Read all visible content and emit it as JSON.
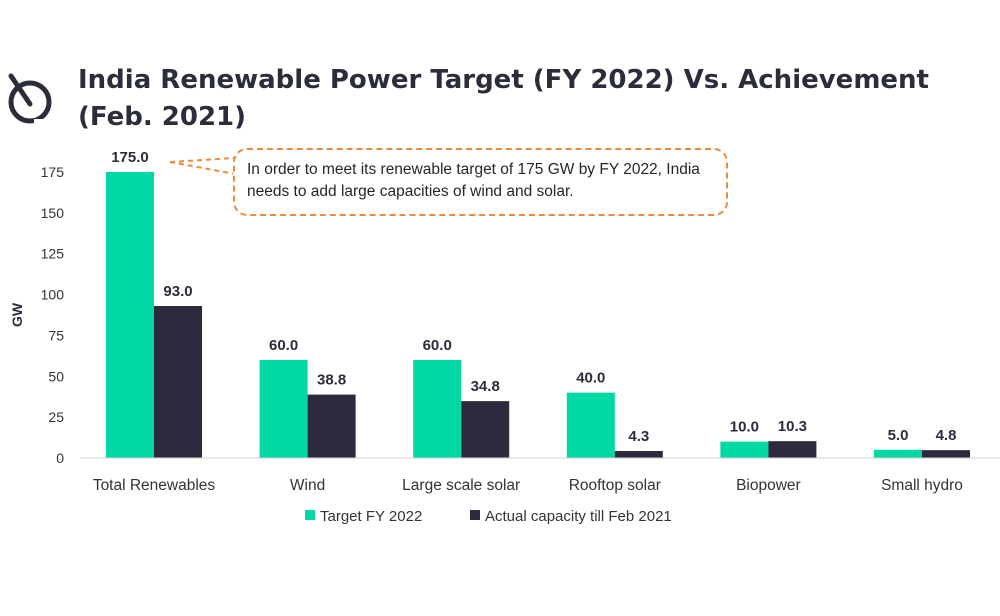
{
  "page": {
    "title": "India Renewable Power Target (FY 2022) Vs. Achievement (Feb. 2021)"
  },
  "callout": {
    "text": "In order to meet its renewable target of 175 GW by FY 2022, India needs to add large capacities of wind and solar."
  },
  "colors": {
    "target": "#00d9a3",
    "actual": "#2c2a3c",
    "callout_border": "#ea8a3a"
  },
  "chart_data": {
    "type": "bar",
    "title": "India Renewable Power Target (FY 2022) Vs. Achievement (Feb. 2021)",
    "xlabel": "",
    "ylabel": "GW",
    "ylim": [
      0,
      175
    ],
    "yticks": [
      0,
      25,
      50,
      75,
      100,
      125,
      150,
      175
    ],
    "categories": [
      "Total Renewables",
      "Wind",
      "Large scale solar",
      "Rooftop solar",
      "Biopower",
      "Small hydro"
    ],
    "series": [
      {
        "name": "Target FY 2022",
        "values": [
          175.0,
          60.0,
          60.0,
          40.0,
          10.0,
          5.0
        ],
        "labels": [
          "175.0",
          "60.0",
          "60.0",
          "40.0",
          "10.0",
          "5.0"
        ]
      },
      {
        "name": "Actual capacity till Feb 2021",
        "values": [
          93.0,
          38.8,
          34.8,
          4.3,
          10.3,
          4.8
        ],
        "labels": [
          "93.0",
          "38.8",
          "34.8",
          "4.3",
          "10.3",
          "4.8"
        ]
      }
    ],
    "legend": "bottom-center",
    "grid": false
  }
}
